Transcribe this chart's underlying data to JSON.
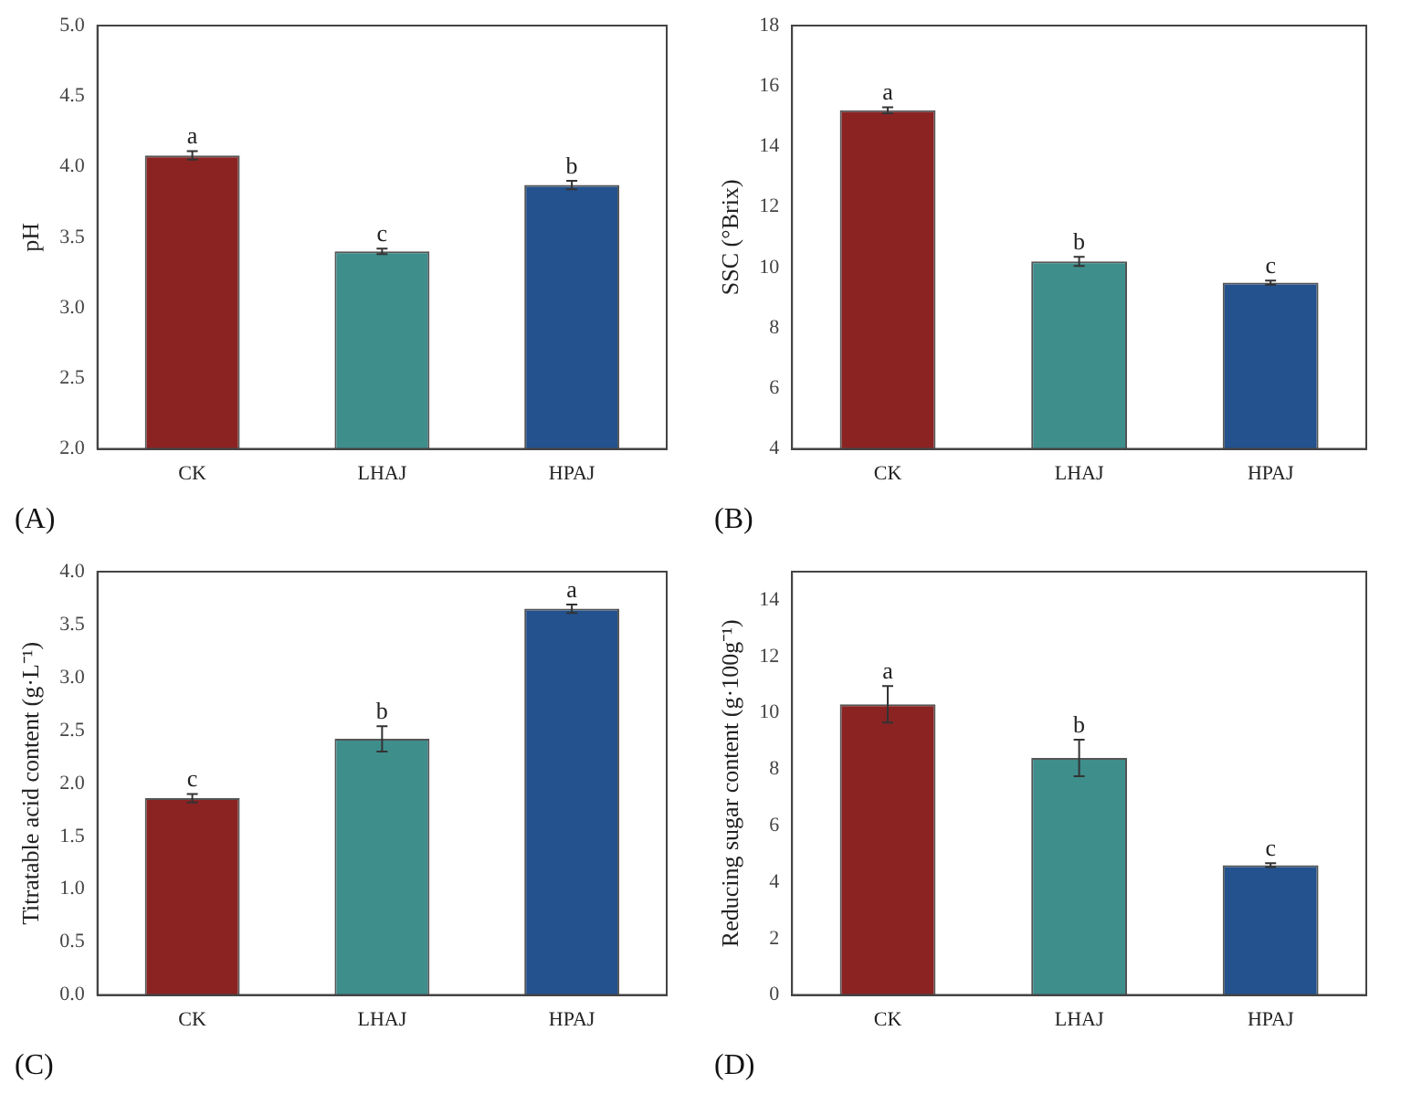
{
  "chart_data": [
    {
      "type": "bar",
      "ylabel": "pH",
      "categories": [
        "CK",
        "LHAJ",
        "HPAJ"
      ],
      "values": [
        4.08,
        3.4,
        3.87
      ],
      "errors": [
        0.03,
        0.02,
        0.03
      ],
      "colors": [
        "#8b2323",
        "#3e8e8c",
        "#23528e"
      ],
      "ylim": [
        2.0,
        5.0
      ],
      "yticks": [
        {
          "value": 2,
          "label": "2.0"
        },
        {
          "value": 2.5,
          "label": "2.5"
        },
        {
          "value": 3,
          "label": "3.0"
        },
        {
          "value": 3.5,
          "label": "3.5"
        },
        {
          "value": 4,
          "label": "4.0"
        },
        {
          "value": 4.5,
          "label": "4.5"
        },
        {
          "value": 5,
          "label": "5.0"
        }
      ],
      "grid": false,
      "legend": false,
      "annotations": [
        {
          "text": "a",
          "x": "CK",
          "y": 4.11
        },
        {
          "text": "c",
          "x": "LHAJ",
          "y": 3.42
        },
        {
          "text": "b",
          "x": "HPAJ",
          "y": 3.9
        },
        "(A)"
      ]
    },
    {
      "type": "bar",
      "ylabel": "SSC (°Brix)",
      "categories": [
        "CK",
        "LHAJ",
        "HPAJ"
      ],
      "values": [
        15.2,
        10.2,
        9.5
      ],
      "errors": [
        0.1,
        0.15,
        0.07
      ],
      "colors": [
        "#8b2323",
        "#3e8e8c",
        "#23528e"
      ],
      "ylim": [
        4,
        18
      ],
      "yticks": [
        4,
        6,
        8,
        10,
        12,
        14,
        16,
        18
      ],
      "grid": false,
      "legend": false,
      "annotations": [
        {
          "text": "a",
          "x": "CK",
          "y": 15.3
        },
        {
          "text": "b",
          "x": "LHAJ",
          "y": 10.35
        },
        {
          "text": "c",
          "x": "HPAJ",
          "y": 9.57
        },
        "(B)"
      ]
    },
    {
      "type": "bar",
      "ylabel": "Titratable acid content (g·L⁻¹)",
      "categories": [
        "CK",
        "LHAJ",
        "HPAJ"
      ],
      "values": [
        1.86,
        2.42,
        3.65
      ],
      "errors": [
        0.04,
        0.12,
        0.04
      ],
      "colors": [
        "#8b2323",
        "#3e8e8c",
        "#23528e"
      ],
      "ylim": [
        0.0,
        4.0
      ],
      "yticks": [
        {
          "value": 0,
          "label": "0.0"
        },
        {
          "value": 0.5,
          "label": "0.5"
        },
        {
          "value": 1,
          "label": "1.0"
        },
        {
          "value": 1.5,
          "label": "1.5"
        },
        {
          "value": 2,
          "label": "2.0"
        },
        {
          "value": 2.5,
          "label": "2.5"
        },
        {
          "value": 3,
          "label": "3.0"
        },
        {
          "value": 3.5,
          "label": "3.5"
        },
        {
          "value": 4,
          "label": "4.0"
        }
      ],
      "grid": false,
      "legend": false,
      "annotations": [
        {
          "text": "c",
          "x": "CK",
          "y": 1.9
        },
        {
          "text": "b",
          "x": "LHAJ",
          "y": 2.54
        },
        {
          "text": "a",
          "x": "HPAJ",
          "y": 3.69
        },
        "(C)"
      ]
    },
    {
      "type": "bar",
      "ylabel": "Reducing sugar content (g·100g⁻¹)",
      "categories": [
        "CK",
        "LHAJ",
        "HPAJ"
      ],
      "values": [
        10.3,
        8.4,
        4.6
      ],
      "errors": [
        0.65,
        0.65,
        0.07
      ],
      "colors": [
        "#8b2323",
        "#3e8e8c",
        "#23528e"
      ],
      "ylim": [
        0,
        15
      ],
      "yticks": [
        0,
        2,
        4,
        6,
        8,
        10,
        12,
        14
      ],
      "grid": false,
      "legend": false,
      "annotations": [
        {
          "text": "a",
          "x": "CK",
          "y": 10.95
        },
        {
          "text": "b",
          "x": "LHAJ",
          "y": 9.05
        },
        {
          "text": "c",
          "x": "HPAJ",
          "y": 4.67
        },
        "(D)"
      ]
    }
  ]
}
